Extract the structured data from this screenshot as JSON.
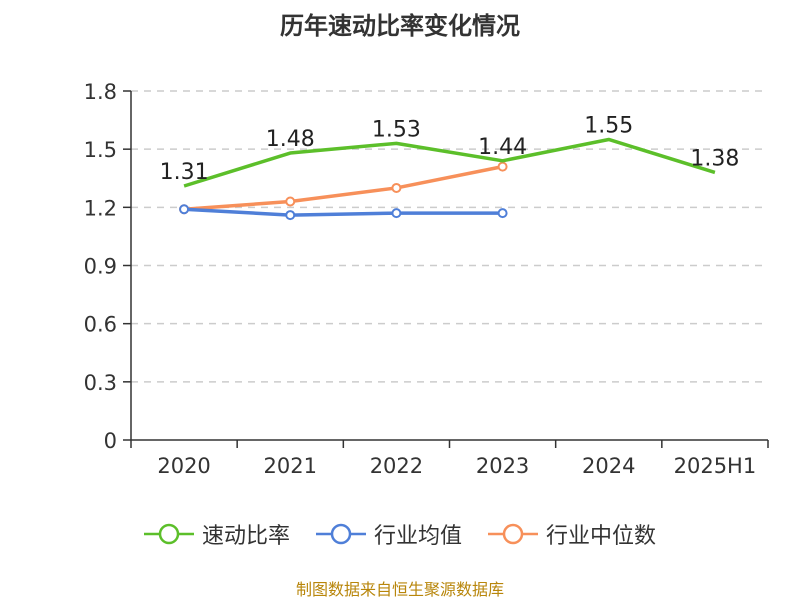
{
  "chart_data": {
    "type": "line",
    "title": "历年速动比率变化情况",
    "categories": [
      "2020",
      "2021",
      "2022",
      "2023",
      "2024",
      "2025H1"
    ],
    "ylim": [
      0,
      1.8
    ],
    "yticks": [
      "0",
      "0.3",
      "0.6",
      "0.9",
      "1.2",
      "1.5",
      "1.8"
    ],
    "ytick_values": [
      0,
      0.3,
      0.6,
      0.9,
      1.2,
      1.5,
      1.8
    ],
    "grid": true,
    "legend_position": "bottom",
    "series": [
      {
        "name": "速动比率",
        "color": "#5cbf2a",
        "values": [
          1.31,
          1.48,
          1.53,
          1.44,
          1.55,
          1.38
        ],
        "labels": [
          "1.31",
          "1.48",
          "1.53",
          "1.44",
          "1.55",
          "1.38"
        ],
        "show_labels": true,
        "show_markers": false
      },
      {
        "name": "行业均值",
        "color": "#4f7fd8",
        "values": [
          1.19,
          1.16,
          1.17,
          1.17,
          null,
          null
        ],
        "show_labels": false,
        "show_markers": true
      },
      {
        "name": "行业中位数",
        "color": "#f7905a",
        "values": [
          1.19,
          1.23,
          1.3,
          1.41,
          null,
          null
        ],
        "show_labels": false,
        "show_markers": true
      }
    ],
    "source": "制图数据来自恒生聚源数据库"
  }
}
